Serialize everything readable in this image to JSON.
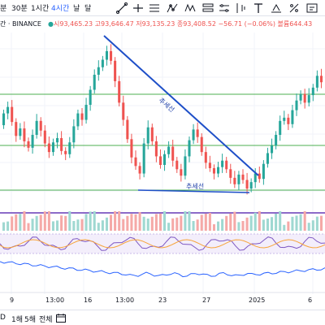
{
  "toolbar": {
    "timeframes": [
      {
        "label": "분",
        "active": false
      },
      {
        "label": "30분",
        "active": false
      },
      {
        "label": "1시간",
        "active": false
      },
      {
        "label": "4시간",
        "active": true
      },
      {
        "label": "날",
        "active": false
      },
      {
        "label": "달",
        "active": false
      }
    ],
    "tools": [
      "line-tool-icon",
      "horizontal-line-icon",
      "parallel-channel-icon",
      "fib-icon",
      "pattern-icon",
      "elliott-icon",
      "brush-icon",
      "measure-icon",
      "text-icon",
      "more-icon"
    ]
  },
  "legend": {
    "symbol": "간 · BINANCE",
    "ohlc": "시93,465.23 고93,646.47 저93,135.23 종93,408.52 −56.71 (−0.06%) 볼륨644.43"
  },
  "annotations": {
    "trendline_label": "추세선",
    "support_label": "추세선"
  },
  "x_axis": [
    "9",
    "13:00",
    "16",
    "13:00",
    "23",
    "27",
    "2025",
    "6"
  ],
  "range_bar": [
    "D",
    "1해",
    "5해",
    "전체"
  ],
  "colors": {
    "up": "#26a69a",
    "down": "#ef5350",
    "trendline": "#1e4fc8",
    "support": "#4caf50",
    "purple": "#673ab7",
    "accent": "#2962ff"
  },
  "price_data": [
    [
      97.5,
      98.6
    ],
    [
      98.6,
      99.2
    ],
    [
      99.2,
      97.8
    ],
    [
      97.8,
      96.5
    ],
    [
      96.5,
      97.2
    ],
    [
      97.2,
      96.0
    ],
    [
      96.0,
      95.4
    ],
    [
      95.4,
      96.6
    ],
    [
      96.6,
      97.9
    ],
    [
      97.9,
      97.0
    ],
    [
      97.0,
      95.8
    ],
    [
      95.8,
      95.0
    ],
    [
      95.0,
      95.9
    ],
    [
      95.9,
      96.3
    ],
    [
      96.3,
      95.1
    ],
    [
      95.1,
      94.8
    ],
    [
      94.8,
      95.9
    ],
    [
      95.9,
      97.4
    ],
    [
      97.4,
      98.6
    ],
    [
      98.6,
      98.0
    ],
    [
      98.0,
      99.4
    ],
    [
      99.4,
      100.8
    ],
    [
      100.8,
      102.2
    ],
    [
      102.2,
      102.9
    ],
    [
      102.9,
      103.6
    ],
    [
      103.6,
      104.4
    ],
    [
      104.4,
      103.5
    ],
    [
      103.5,
      101.6
    ],
    [
      101.6,
      99.6
    ],
    [
      99.6,
      98.0
    ],
    [
      98.0,
      96.2
    ],
    [
      96.2,
      94.5
    ],
    [
      94.5,
      93.7
    ],
    [
      93.7,
      93.0
    ],
    [
      93.0,
      95.8
    ],
    [
      95.8,
      97.3
    ],
    [
      97.3,
      96.0
    ],
    [
      96.0,
      94.6
    ],
    [
      94.6,
      93.8
    ],
    [
      93.8,
      94.8
    ],
    [
      94.8,
      95.5
    ],
    [
      95.5,
      94.2
    ],
    [
      94.2,
      93.4
    ],
    [
      93.4,
      92.8
    ],
    [
      92.8,
      94.6
    ],
    [
      94.6,
      96.1
    ],
    [
      96.1,
      97.1
    ],
    [
      97.1,
      96.4
    ],
    [
      96.4,
      95.0
    ],
    [
      95.0,
      94.0
    ],
    [
      94.0,
      93.5
    ],
    [
      93.5,
      93.0
    ],
    [
      93.0,
      93.6
    ],
    [
      93.6,
      94.2
    ],
    [
      94.2,
      93.4
    ],
    [
      93.4,
      92.6
    ],
    [
      92.6,
      92.0
    ],
    [
      92.0,
      92.9
    ],
    [
      92.9,
      92.4
    ],
    [
      92.4,
      91.6
    ],
    [
      91.6,
      92.2
    ],
    [
      92.2,
      93.0
    ],
    [
      93.0,
      92.5
    ],
    [
      92.5,
      93.9
    ],
    [
      93.9,
      94.9
    ],
    [
      94.9,
      95.6
    ],
    [
      95.6,
      96.6
    ],
    [
      96.6,
      97.9
    ],
    [
      97.9,
      98.2
    ],
    [
      98.2,
      97.6
    ],
    [
      97.6,
      98.9
    ],
    [
      98.9,
      99.8
    ],
    [
      99.8,
      100.4
    ],
    [
      100.4,
      99.6
    ],
    [
      99.6,
      100.3
    ],
    [
      100.3,
      101.0
    ],
    [
      101.0,
      102.1
    ],
    [
      102.1,
      101.5
    ]
  ]
}
